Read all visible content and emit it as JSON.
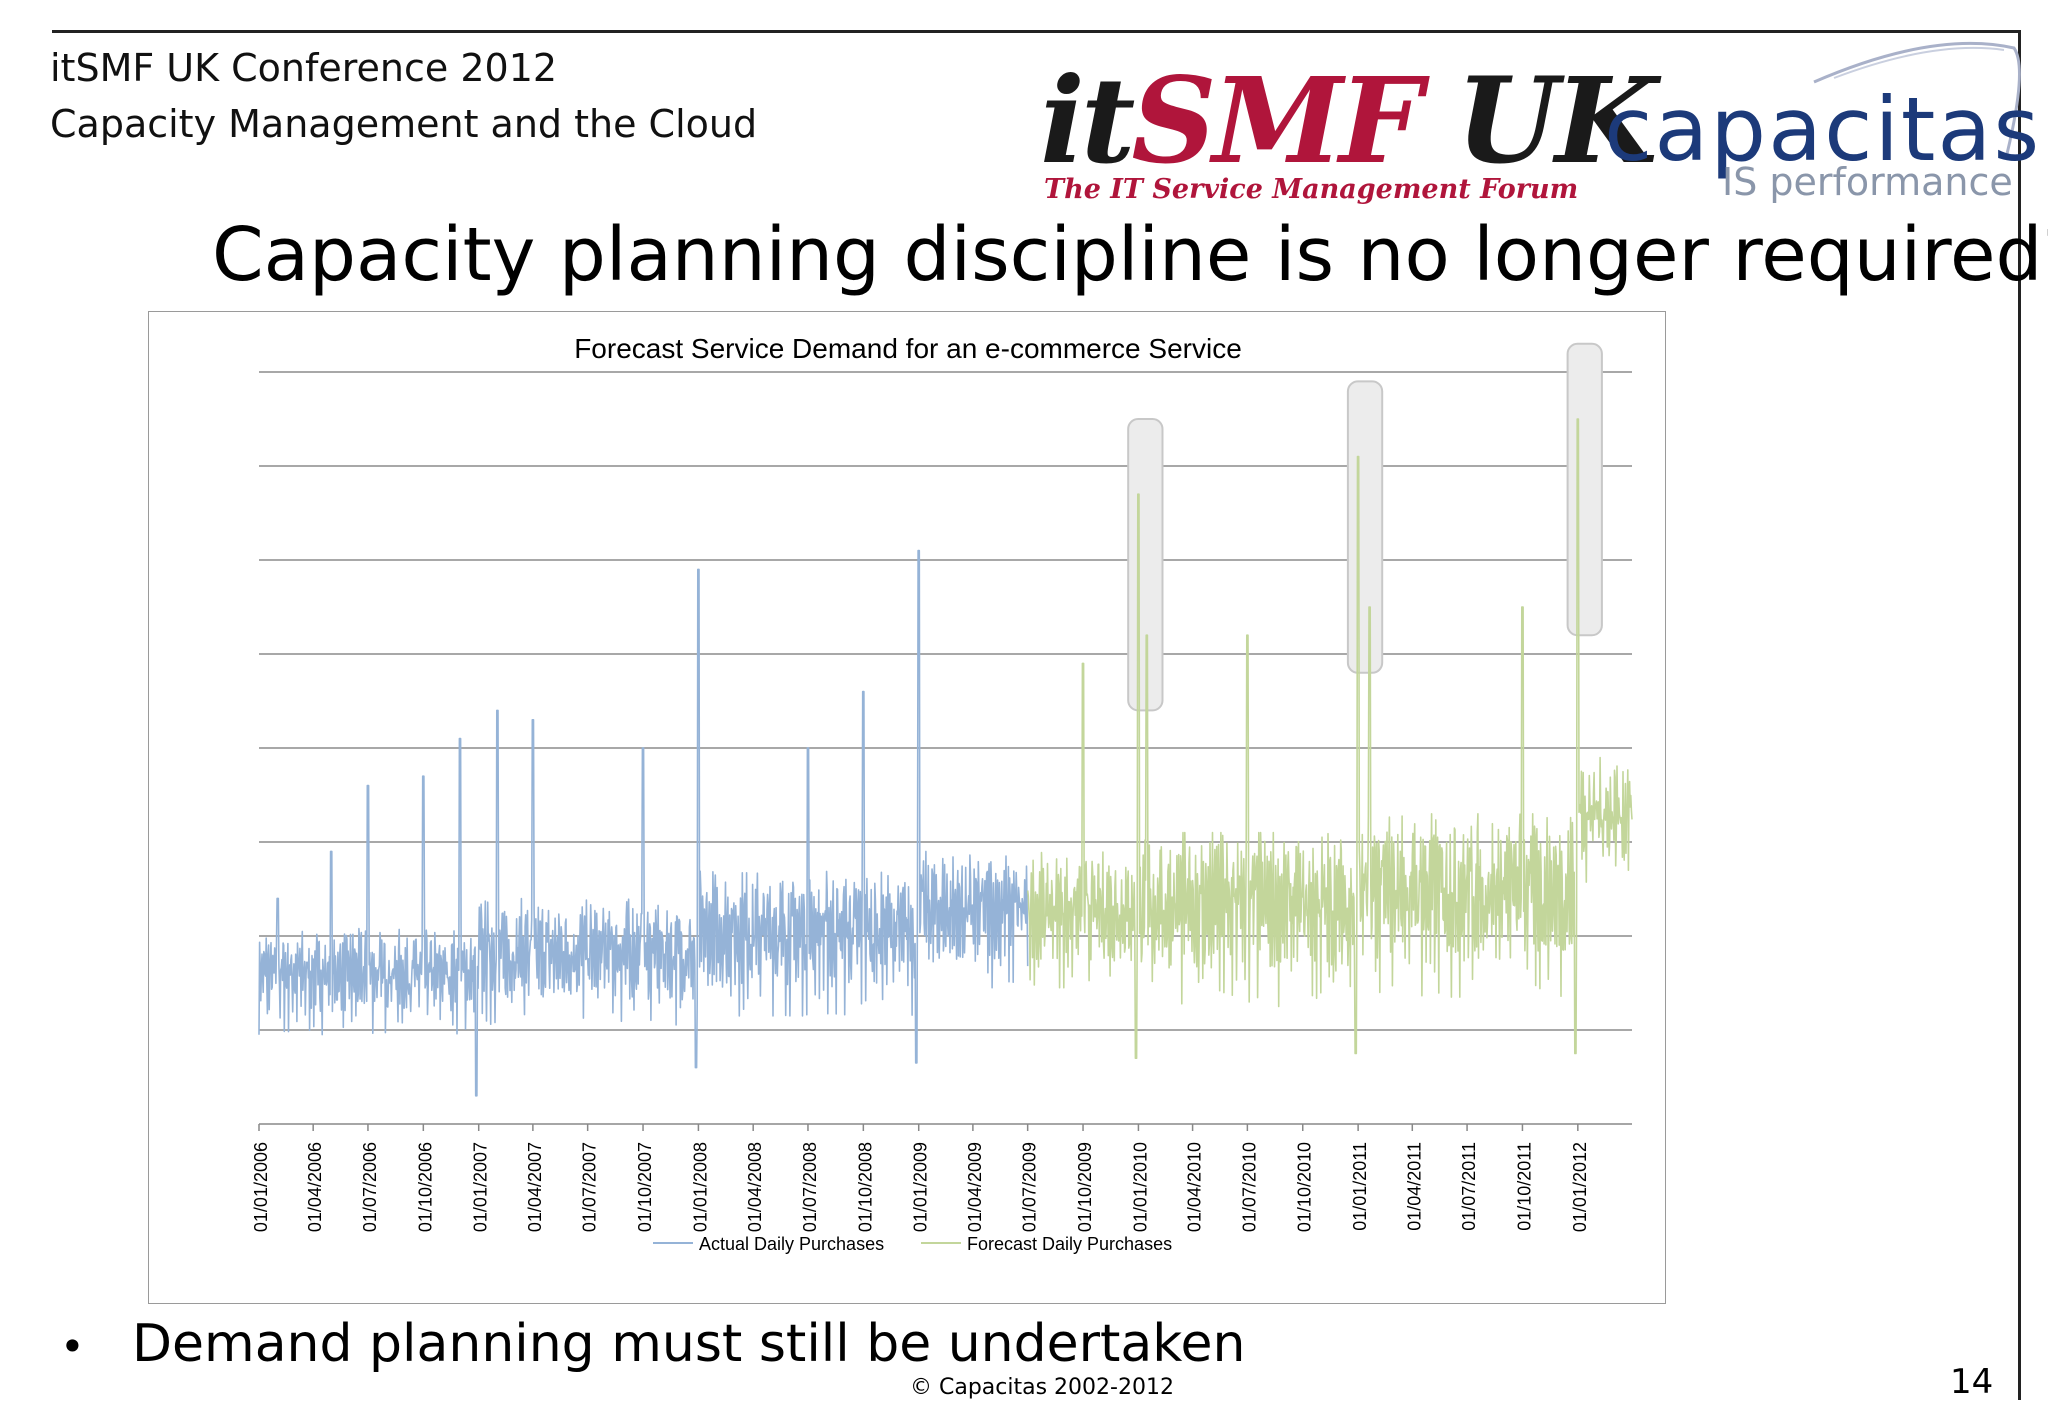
{
  "header": {
    "conference": "itSMF UK Conference 2012",
    "subtitle": "Capacity Management and the Cloud"
  },
  "logos": {
    "itsmf": {
      "it": "it",
      "smf": "SMF",
      "uk": "UK",
      "tagline": "The IT Service Management Forum"
    },
    "capacitas": {
      "name": "capacitas",
      "reg": "®",
      "tagline": "IS performance"
    }
  },
  "slide": {
    "title": "Capacity planning discipline is no longer required?",
    "bullet": "Demand planning must still be undertaken",
    "footer": "© Capacitas 2002-2012",
    "page": "14"
  },
  "colors": {
    "actual": "#95b3d7",
    "forecast": "#c3d69b",
    "gridline": "#8c8c8c",
    "highlight_fill": "#ececec",
    "highlight_stroke": "#c8c8c8",
    "itsmf_red": "#b0153b",
    "capacitas_blue": "#1c3a7a"
  },
  "chart_data": {
    "type": "line",
    "title": "Forecast Service Demand for an e-commerce Service",
    "xlabel": "",
    "ylabel": "",
    "y_tick_labels_shown": false,
    "grid": true,
    "legend_position": "bottom",
    "x_tick_labels": [
      "01/01/2006",
      "01/04/2006",
      "01/07/2006",
      "01/10/2006",
      "01/01/2007",
      "01/04/2007",
      "01/07/2007",
      "01/10/2007",
      "01/01/2008",
      "01/04/2008",
      "01/07/2008",
      "01/10/2008",
      "01/01/2009",
      "01/04/2009",
      "01/07/2009",
      "01/10/2009",
      "01/01/2010",
      "01/04/2010",
      "01/07/2010",
      "01/10/2010",
      "01/01/2011",
      "01/04/2011",
      "01/07/2011",
      "01/10/2011",
      "01/01/2012"
    ],
    "series": [
      {
        "name": "Actual Daily Purchases",
        "color": "#95b3d7",
        "x_start": "2006-01-01",
        "x_end": "2009-07-01",
        "typical_range_by_year": [
          {
            "period": "2006",
            "low": 1.0,
            "high": 2.0
          },
          {
            "period": "2007",
            "low": 1.1,
            "high": 2.3
          },
          {
            "period": "2008",
            "low": 1.2,
            "high": 2.6
          },
          {
            "period": "2009 H1",
            "low": 1.5,
            "high": 2.8
          }
        ],
        "notable_peaks": [
          {
            "date": "2006-02-01",
            "value": 2.4
          },
          {
            "date": "2006-05-01",
            "value": 2.9
          },
          {
            "date": "2006-07-01",
            "value": 3.6
          },
          {
            "date": "2006-10-01",
            "value": 3.7
          },
          {
            "date": "2006-12-01",
            "value": 4.1
          },
          {
            "date": "2007-02-01",
            "value": 4.4
          },
          {
            "date": "2007-04-01",
            "value": 4.3
          },
          {
            "date": "2007-10-01",
            "value": 4.0
          },
          {
            "date": "2008-01-01",
            "value": 5.9
          },
          {
            "date": "2008-07-01",
            "value": 4.0
          },
          {
            "date": "2008-10-01",
            "value": 4.6
          },
          {
            "date": "2009-01-01",
            "value": 6.1
          }
        ],
        "notable_troughs": [
          {
            "date": "2006-12-28",
            "value": 0.3
          },
          {
            "date": "2007-12-28",
            "value": 0.6
          },
          {
            "date": "2008-12-28",
            "value": 0.65
          }
        ]
      },
      {
        "name": "Forecast Daily Purchases",
        "color": "#c3d69b",
        "x_start": "2009-07-01",
        "x_end": "2012-03-31",
        "typical_range_by_year": [
          {
            "period": "2009 H2",
            "low": 1.5,
            "high": 2.8
          },
          {
            "period": "2010",
            "low": 1.3,
            "high": 3.0
          },
          {
            "period": "2011",
            "low": 1.4,
            "high": 3.2
          },
          {
            "period": "2012 Q1",
            "low": 2.6,
            "high": 3.8
          }
        ],
        "notable_peaks": [
          {
            "date": "2009-10-01",
            "value": 4.9
          },
          {
            "date": "2010-01-01",
            "value": 6.7
          },
          {
            "date": "2010-01-15",
            "value": 5.2
          },
          {
            "date": "2010-07-01",
            "value": 5.2
          },
          {
            "date": "2011-01-01",
            "value": 7.1
          },
          {
            "date": "2011-01-20",
            "value": 5.5
          },
          {
            "date": "2011-10-01",
            "value": 5.5
          },
          {
            "date": "2012-01-01",
            "value": 7.5
          }
        ],
        "notable_troughs": [
          {
            "date": "2009-12-28",
            "value": 0.7
          },
          {
            "date": "2010-12-28",
            "value": 0.75
          },
          {
            "date": "2011-12-28",
            "value": 0.75
          }
        ]
      }
    ],
    "highlighted_periods": [
      {
        "start": "2009-12-15",
        "end": "2010-02-10",
        "label": "Jan 2010 peak"
      },
      {
        "start": "2010-12-15",
        "end": "2011-02-10",
        "label": "Jan 2011 peak"
      },
      {
        "start": "2011-12-15",
        "end": "2012-02-10",
        "label": "Jan 2012 peak"
      }
    ],
    "ylim": [
      0,
      8
    ]
  }
}
